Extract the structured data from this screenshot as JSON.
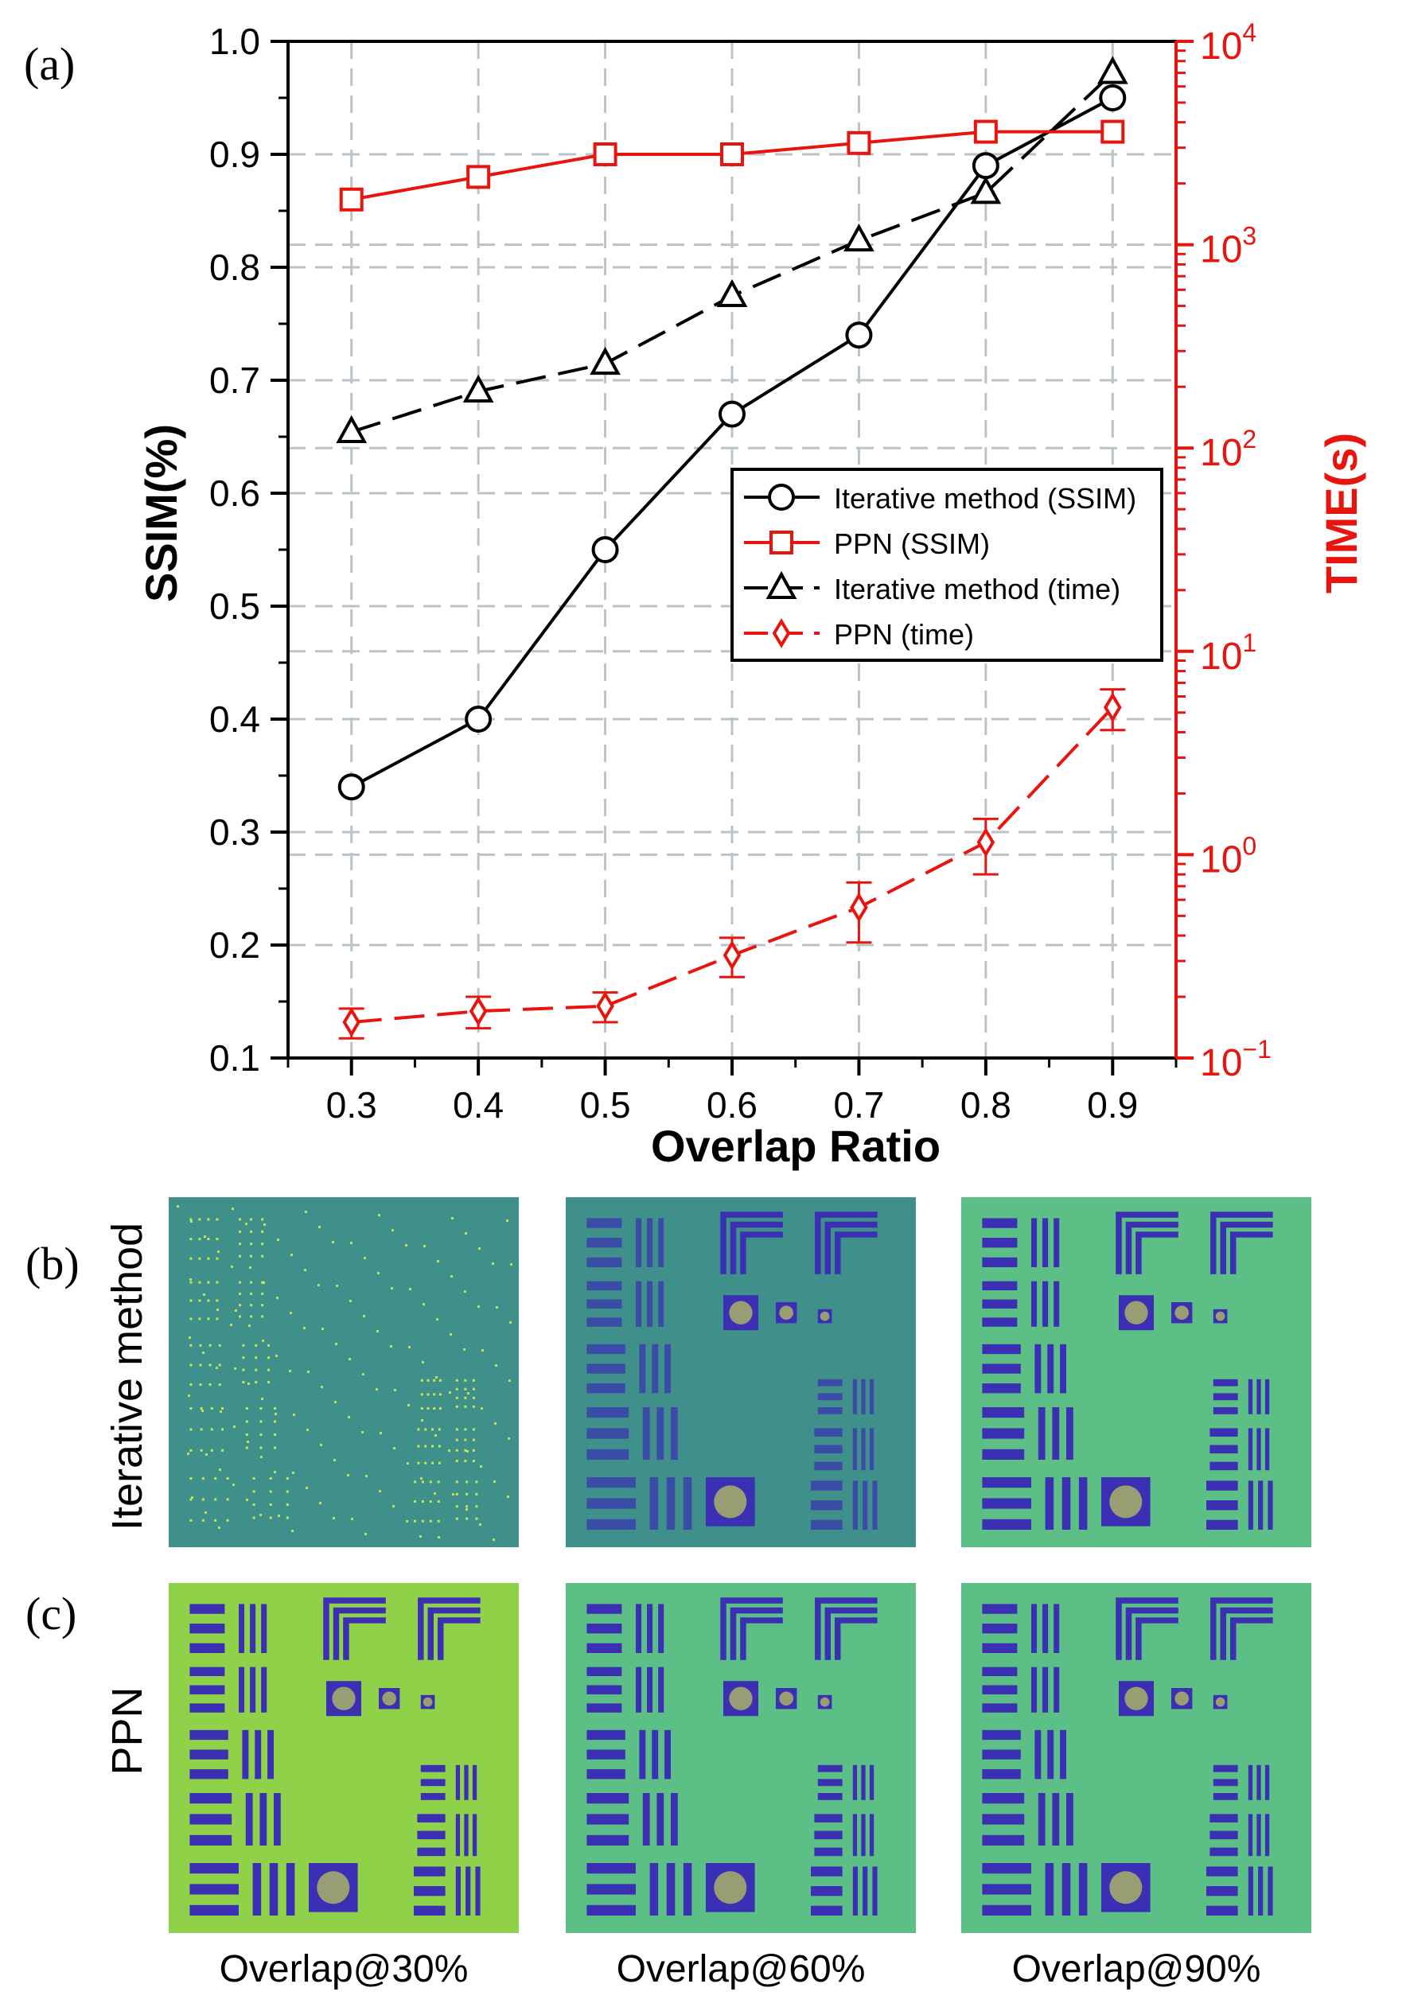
{
  "chart_data": {
    "type": "line",
    "panel_label": "(a)",
    "xlabel": "Overlap Ratio",
    "ylabel_left": "SSIM(%)",
    "ylabel_right": "TIME(s)",
    "x": [
      0.3,
      0.4,
      0.5,
      0.6,
      0.7,
      0.8,
      0.9
    ],
    "xlim": [
      0.25,
      0.95
    ],
    "xticks": [
      "0.3",
      "0.4",
      "0.5",
      "0.6",
      "0.7",
      "0.8",
      "0.9"
    ],
    "ylim_left": [
      0.1,
      1.0
    ],
    "yticks_left": [
      "0.1",
      "0.2",
      "0.3",
      "0.4",
      "0.5",
      "0.6",
      "0.7",
      "0.8",
      "0.9",
      "1.0"
    ],
    "right_axis_log": true,
    "ylim_right": [
      0.1,
      10000
    ],
    "yticks_right": [
      {
        "base": "10",
        "exp": "−1"
      },
      {
        "base": "10",
        "exp": "0"
      },
      {
        "base": "10",
        "exp": "1"
      },
      {
        "base": "10",
        "exp": "2"
      },
      {
        "base": "10",
        "exp": "3"
      },
      {
        "base": "10",
        "exp": "4"
      }
    ],
    "grid": true,
    "legend_position": "center-right",
    "series": [
      {
        "name": "Iterative method (SSIM)",
        "axis": "left",
        "marker": "circle",
        "dash": "solid",
        "color": "#000000",
        "values": [
          0.34,
          0.4,
          0.55,
          0.67,
          0.74,
          0.89,
          0.95
        ]
      },
      {
        "name": "PPN (SSIM)",
        "axis": "left",
        "marker": "square",
        "dash": "solid",
        "color": "#e8140e",
        "values": [
          0.86,
          0.88,
          0.9,
          0.9,
          0.91,
          0.92,
          0.92
        ]
      },
      {
        "name": "Iterative method (time)",
        "axis": "right",
        "marker": "triangle",
        "dash": "dashed",
        "color": "#000000",
        "values": [
          120,
          190,
          260,
          560,
          1050,
          1800,
          7000
        ]
      },
      {
        "name": "PPN (time)",
        "axis": "right",
        "marker": "diamond",
        "dash": "dashed",
        "color": "#e8140e",
        "values": [
          0.15,
          0.17,
          0.18,
          0.32,
          0.55,
          1.15,
          5.3
        ],
        "error": [
          0.025,
          0.03,
          0.03,
          0.07,
          0.18,
          0.35,
          1.2
        ]
      }
    ]
  },
  "panel_b": {
    "label": "(b)",
    "row_label": "Iterative method"
  },
  "panel_c": {
    "label": "(c)",
    "row_label": "PPN"
  },
  "columns": [
    "Overlap@30%",
    "Overlap@60%",
    "Overlap@90%"
  ],
  "colors": {
    "bar_blue": "#3b2fb4",
    "bg_teal": "#3f8f8a",
    "bg_green": "#5cbf86",
    "bg_lime": "#8fd24a"
  }
}
